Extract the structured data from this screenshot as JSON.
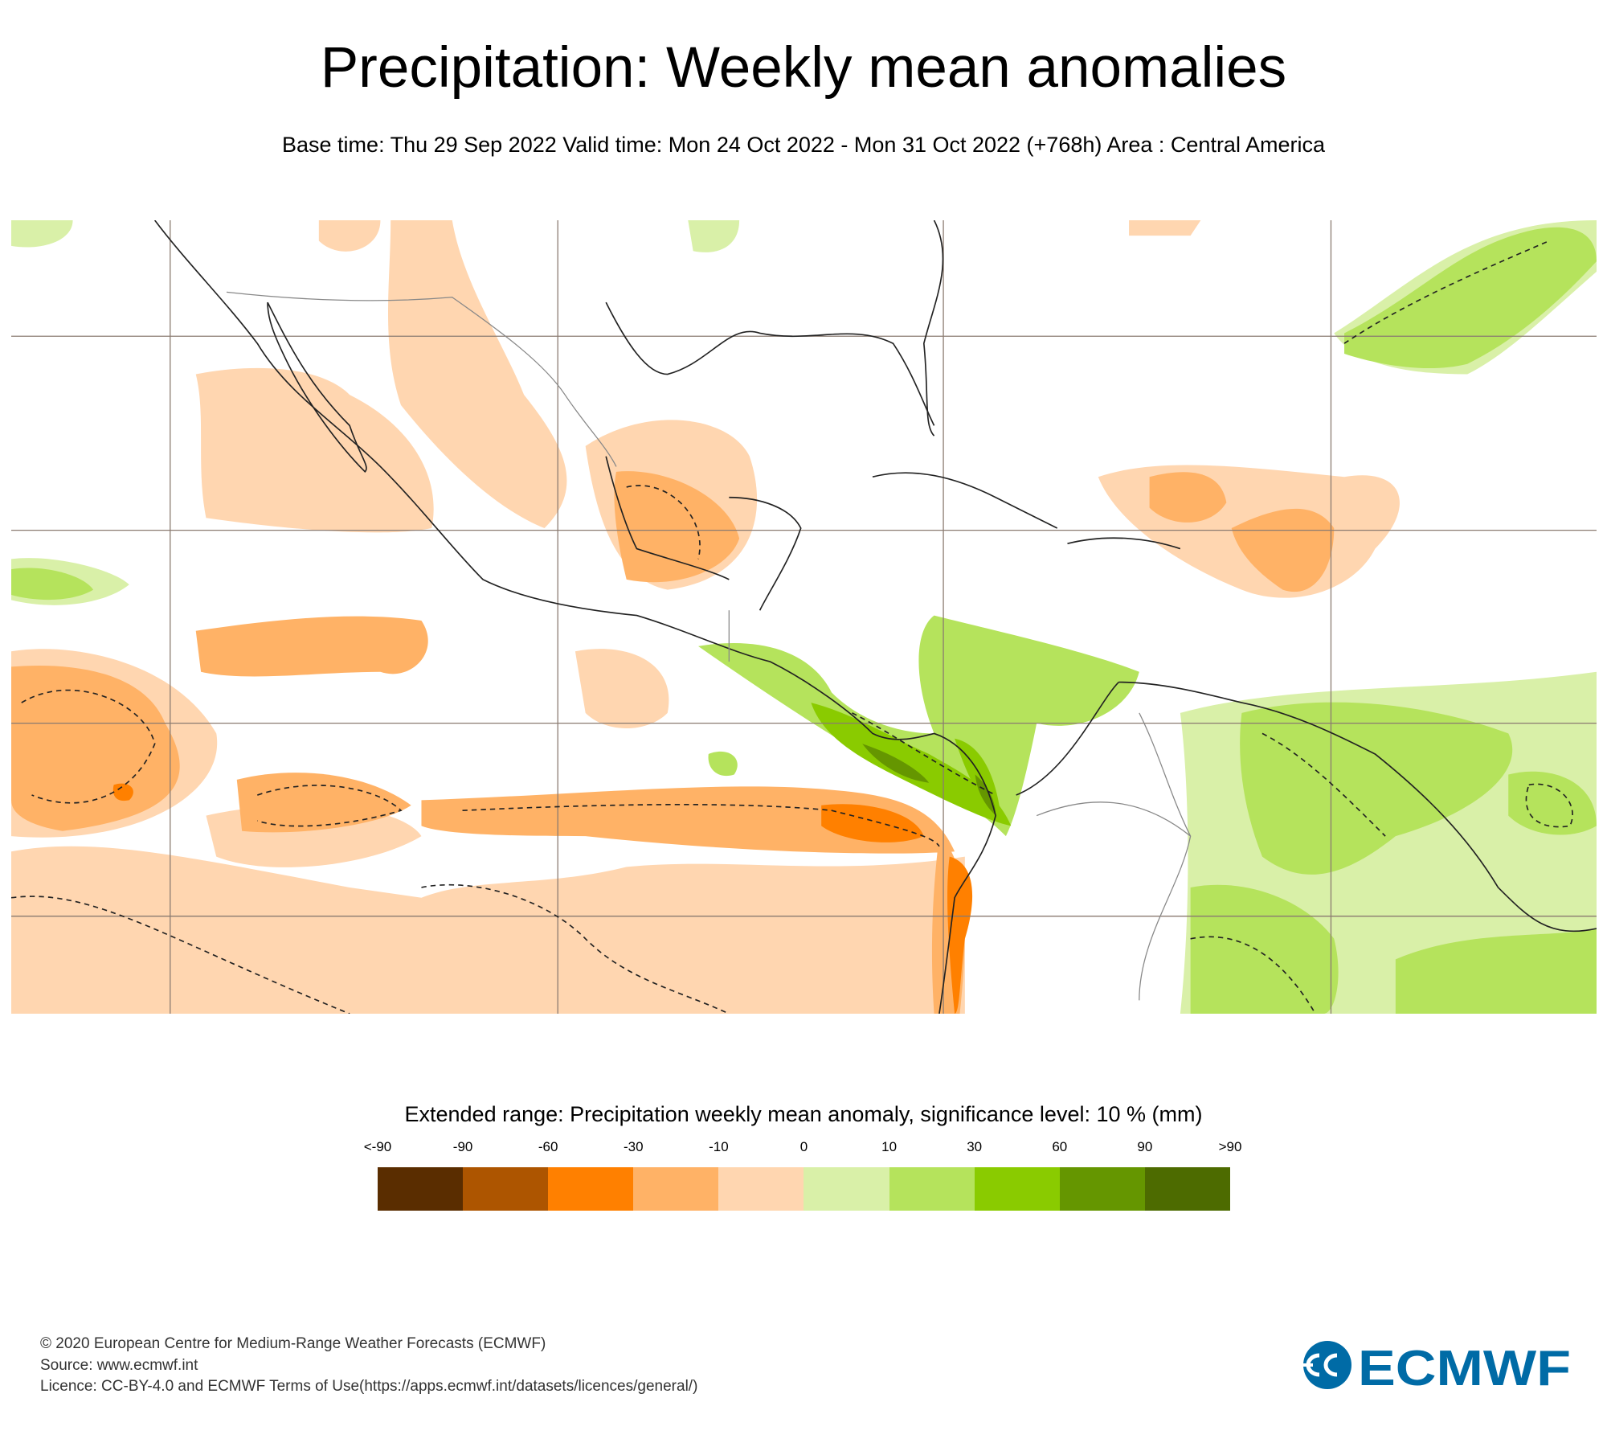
{
  "header": {
    "title": "Precipitation: Weekly mean anomalies",
    "subtitle": "Base time: Thu 29 Sep 2022 Valid time: Mon 24 Oct 2022 - Mon 31 Oct 2022 (+768h) Area : Central America"
  },
  "chart_data": {
    "type": "heatmap",
    "title": "Precipitation: Weekly mean anomalies",
    "area": "Central America",
    "grid": true,
    "legend": {
      "title": "Extended range: Precipitation weekly mean anomaly, significance level: 10 % (mm)",
      "labels": [
        "<-90",
        "-90",
        "-60",
        "-30",
        "-10",
        "0",
        "10",
        "30",
        "60",
        "90",
        ">90"
      ],
      "colors": [
        "#5a2d00",
        "#ad5500",
        "#ff8000",
        "#ffb266",
        "#ffd6b0",
        "#d9f0a8",
        "#b5e35c",
        "#8acb00",
        "#659600",
        "#4d6b00"
      ],
      "placement": "bottom"
    }
  },
  "footer": {
    "copyright": "© 2020 European Centre for Medium-Range Weather Forecasts (ECMWF)",
    "source": "Source: www.ecmwf.int",
    "licence": "Licence: CC-BY-4.0 and ECMWF Terms of Use(https://apps.ecmwf.int/datasets/licences/general/)",
    "logo_text": "ECMWF",
    "logo_color": "#006ba6"
  }
}
